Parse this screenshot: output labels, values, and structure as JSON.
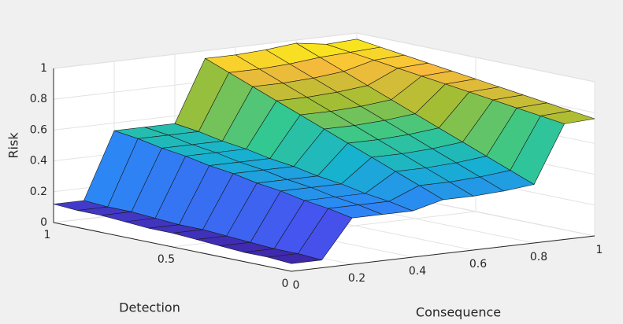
{
  "chart_data": {
    "type": "surface",
    "xlabel": "Consequence",
    "ylabel": "Detection",
    "zlabel": "Risk",
    "x": [
      0,
      0.1,
      0.2,
      0.3,
      0.4,
      0.5,
      0.6,
      0.7,
      0.8,
      0.9,
      1
    ],
    "y": [
      0,
      0.1,
      0.2,
      0.3,
      0.4,
      0.5,
      0.6,
      0.7,
      0.8,
      0.9,
      1
    ],
    "z": [
      [
        0.05,
        0.05,
        0.3,
        0.3,
        0.3,
        0.35,
        0.35,
        0.36,
        0.38,
        0.75,
        0.76
      ],
      [
        0.06,
        0.06,
        0.33,
        0.33,
        0.33,
        0.41,
        0.41,
        0.42,
        0.44,
        0.77,
        0.78
      ],
      [
        0.06,
        0.06,
        0.35,
        0.35,
        0.35,
        0.47,
        0.47,
        0.48,
        0.5,
        0.79,
        0.8
      ],
      [
        0.07,
        0.07,
        0.38,
        0.38,
        0.38,
        0.53,
        0.53,
        0.54,
        0.56,
        0.81,
        0.82
      ],
      [
        0.08,
        0.08,
        0.4,
        0.4,
        0.4,
        0.59,
        0.59,
        0.6,
        0.62,
        0.83,
        0.84
      ],
      [
        0.09,
        0.09,
        0.43,
        0.43,
        0.43,
        0.65,
        0.65,
        0.66,
        0.68,
        0.85,
        0.86
      ],
      [
        0.09,
        0.09,
        0.45,
        0.45,
        0.45,
        0.71,
        0.71,
        0.72,
        0.74,
        0.87,
        0.88
      ],
      [
        0.1,
        0.1,
        0.48,
        0.48,
        0.48,
        0.77,
        0.77,
        0.78,
        0.8,
        0.89,
        0.9
      ],
      [
        0.11,
        0.11,
        0.5,
        0.5,
        0.5,
        0.83,
        0.83,
        0.84,
        0.86,
        0.91,
        0.92
      ],
      [
        0.11,
        0.11,
        0.53,
        0.53,
        0.53,
        0.89,
        0.89,
        0.9,
        0.92,
        0.93,
        0.94
      ],
      [
        0.12,
        0.12,
        0.55,
        0.55,
        0.55,
        0.95,
        0.95,
        0.96,
        0.98,
        0.95,
        0.96
      ]
    ],
    "xlim": [
      0,
      1
    ],
    "ylim": [
      0,
      1
    ],
    "zlim": [
      0,
      1
    ],
    "xticks": [
      0,
      0.2,
      0.4,
      0.6,
      0.8,
      1
    ],
    "yticks": [
      0,
      0.5,
      1
    ],
    "zticks": [
      0,
      0.2,
      0.4,
      0.6,
      0.8,
      1
    ],
    "grid": true,
    "colormap": "parula"
  }
}
